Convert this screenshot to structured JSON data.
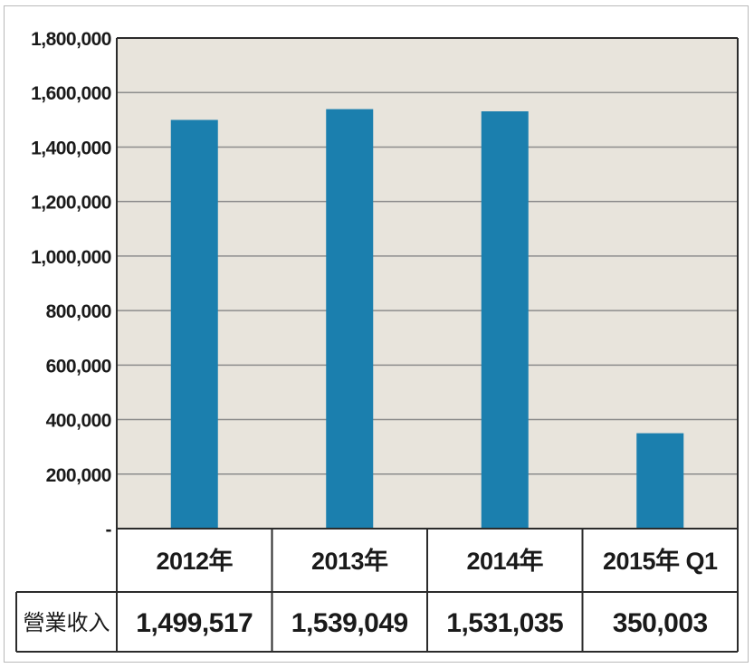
{
  "chart_data": {
    "type": "bar",
    "categories": [
      "2012年",
      "2013年",
      "2014年",
      "2015年 Q1"
    ],
    "series": [
      {
        "values": [
          1499517,
          1539049,
          1531035,
          350003
        ]
      }
    ],
    "ylim": [
      0,
      1800000
    ],
    "yticks": [
      0,
      200000,
      400000,
      600000,
      800000,
      1000000,
      1200000,
      1400000,
      1600000,
      1800000
    ],
    "ytick_labels": [
      "-",
      "200,000",
      "400,000",
      "600,000",
      "800,000",
      "1,000,000",
      "1,200,000",
      "1,400,000",
      "1,600,000",
      "1,800,000"
    ],
    "grid": true,
    "table": {
      "row_label": "營業收入",
      "cells": [
        "1,499,517",
        "1,539,049",
        "1,531,035",
        "350,003"
      ]
    }
  },
  "colors": {
    "bar": "#1b7fae",
    "plot_background": "#e8e4dc",
    "gridline": "#8c8c8c",
    "axis": "#2b2b2b"
  }
}
